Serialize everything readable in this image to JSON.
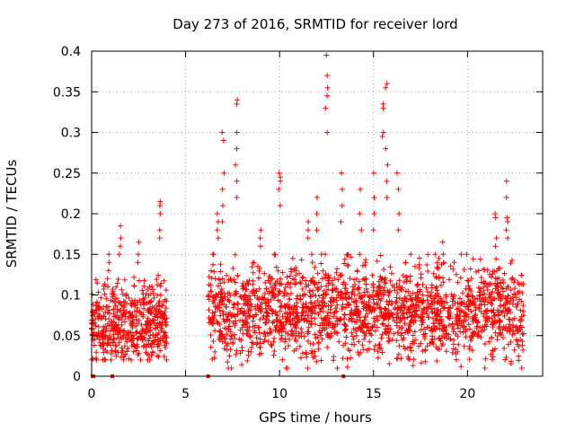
{
  "chart_data": {
    "type": "scatter",
    "title": "Day 273 of 2016, SRMTID for receiver lord",
    "xlabel": "GPS time / hours",
    "ylabel": "SRMTID / TECUs",
    "xlim": [
      0,
      24
    ],
    "ylim": [
      0,
      0.4
    ],
    "grid": true,
    "marker": "+",
    "marker_color": "#ff0000",
    "xticks": [
      0,
      5,
      10,
      15,
      20
    ],
    "xtick_labels": [
      "0",
      "5",
      "10",
      "15",
      "20"
    ],
    "yticks": [
      0,
      0.05,
      0.1,
      0.15,
      0.2,
      0.25,
      0.3,
      0.35,
      0.4
    ],
    "ytick_labels": [
      "0",
      "0.05",
      "0.1",
      "0.15",
      "0.2",
      "0.25",
      "0.3",
      "0.35",
      "0.4"
    ],
    "clusters": [
      {
        "x_start": 0.0,
        "x_end": 4.0,
        "count": 520,
        "median": 0.065,
        "min": 0.02,
        "max": 0.13
      },
      {
        "x_start": 6.2,
        "x_end": 23.0,
        "count": 1900,
        "median": 0.08,
        "min": 0.01,
        "max": 0.15
      }
    ],
    "peaks": [
      {
        "x": 0.9,
        "values": [
          0.15,
          0.14,
          0.13,
          0.12,
          0.11
        ]
      },
      {
        "x": 1.5,
        "values": [
          0.185,
          0.17,
          0.16,
          0.15
        ]
      },
      {
        "x": 2.5,
        "values": [
          0.165,
          0.15,
          0.14
        ]
      },
      {
        "x": 3.6,
        "values": [
          0.215,
          0.21,
          0.2,
          0.18,
          0.17
        ]
      },
      {
        "x": 6.7,
        "values": [
          0.2,
          0.19,
          0.18,
          0.17
        ]
      },
      {
        "x": 7.0,
        "values": [
          0.3,
          0.29,
          0.25,
          0.23,
          0.21,
          0.19
        ]
      },
      {
        "x": 7.7,
        "values": [
          0.34,
          0.335,
          0.3,
          0.28,
          0.26,
          0.24,
          0.22
        ]
      },
      {
        "x": 9.0,
        "values": [
          0.18,
          0.17,
          0.16
        ]
      },
      {
        "x": 10.0,
        "values": [
          0.25,
          0.245,
          0.24,
          0.23,
          0.21
        ]
      },
      {
        "x": 11.5,
        "values": [
          0.19,
          0.18,
          0.17
        ]
      },
      {
        "x": 12.0,
        "values": [
          0.22,
          0.2,
          0.18
        ]
      },
      {
        "x": 12.5,
        "values": [
          0.395,
          0.37,
          0.355,
          0.345,
          0.33,
          0.3
        ]
      },
      {
        "x": 13.3,
        "values": [
          0.25,
          0.23,
          0.21,
          0.19
        ]
      },
      {
        "x": 14.3,
        "values": [
          0.23,
          0.2,
          0.18
        ]
      },
      {
        "x": 15.0,
        "values": [
          0.25,
          0.22,
          0.2,
          0.18
        ]
      },
      {
        "x": 15.5,
        "values": [
          0.335,
          0.33,
          0.3,
          0.295
        ]
      },
      {
        "x": 15.7,
        "values": [
          0.36,
          0.355,
          0.28,
          0.26,
          0.24,
          0.22
        ]
      },
      {
        "x": 16.3,
        "values": [
          0.25,
          0.23,
          0.2,
          0.18
        ]
      },
      {
        "x": 18.7,
        "values": [
          0.165,
          0.15,
          0.14
        ]
      },
      {
        "x": 21.5,
        "values": [
          0.2,
          0.195,
          0.17,
          0.16
        ]
      },
      {
        "x": 22.1,
        "values": [
          0.24,
          0.22,
          0.195,
          0.19,
          0.18,
          0.17
        ]
      }
    ],
    "zero_markers": [
      0.05,
      0.1,
      1.1,
      6.2,
      13.4
    ]
  }
}
